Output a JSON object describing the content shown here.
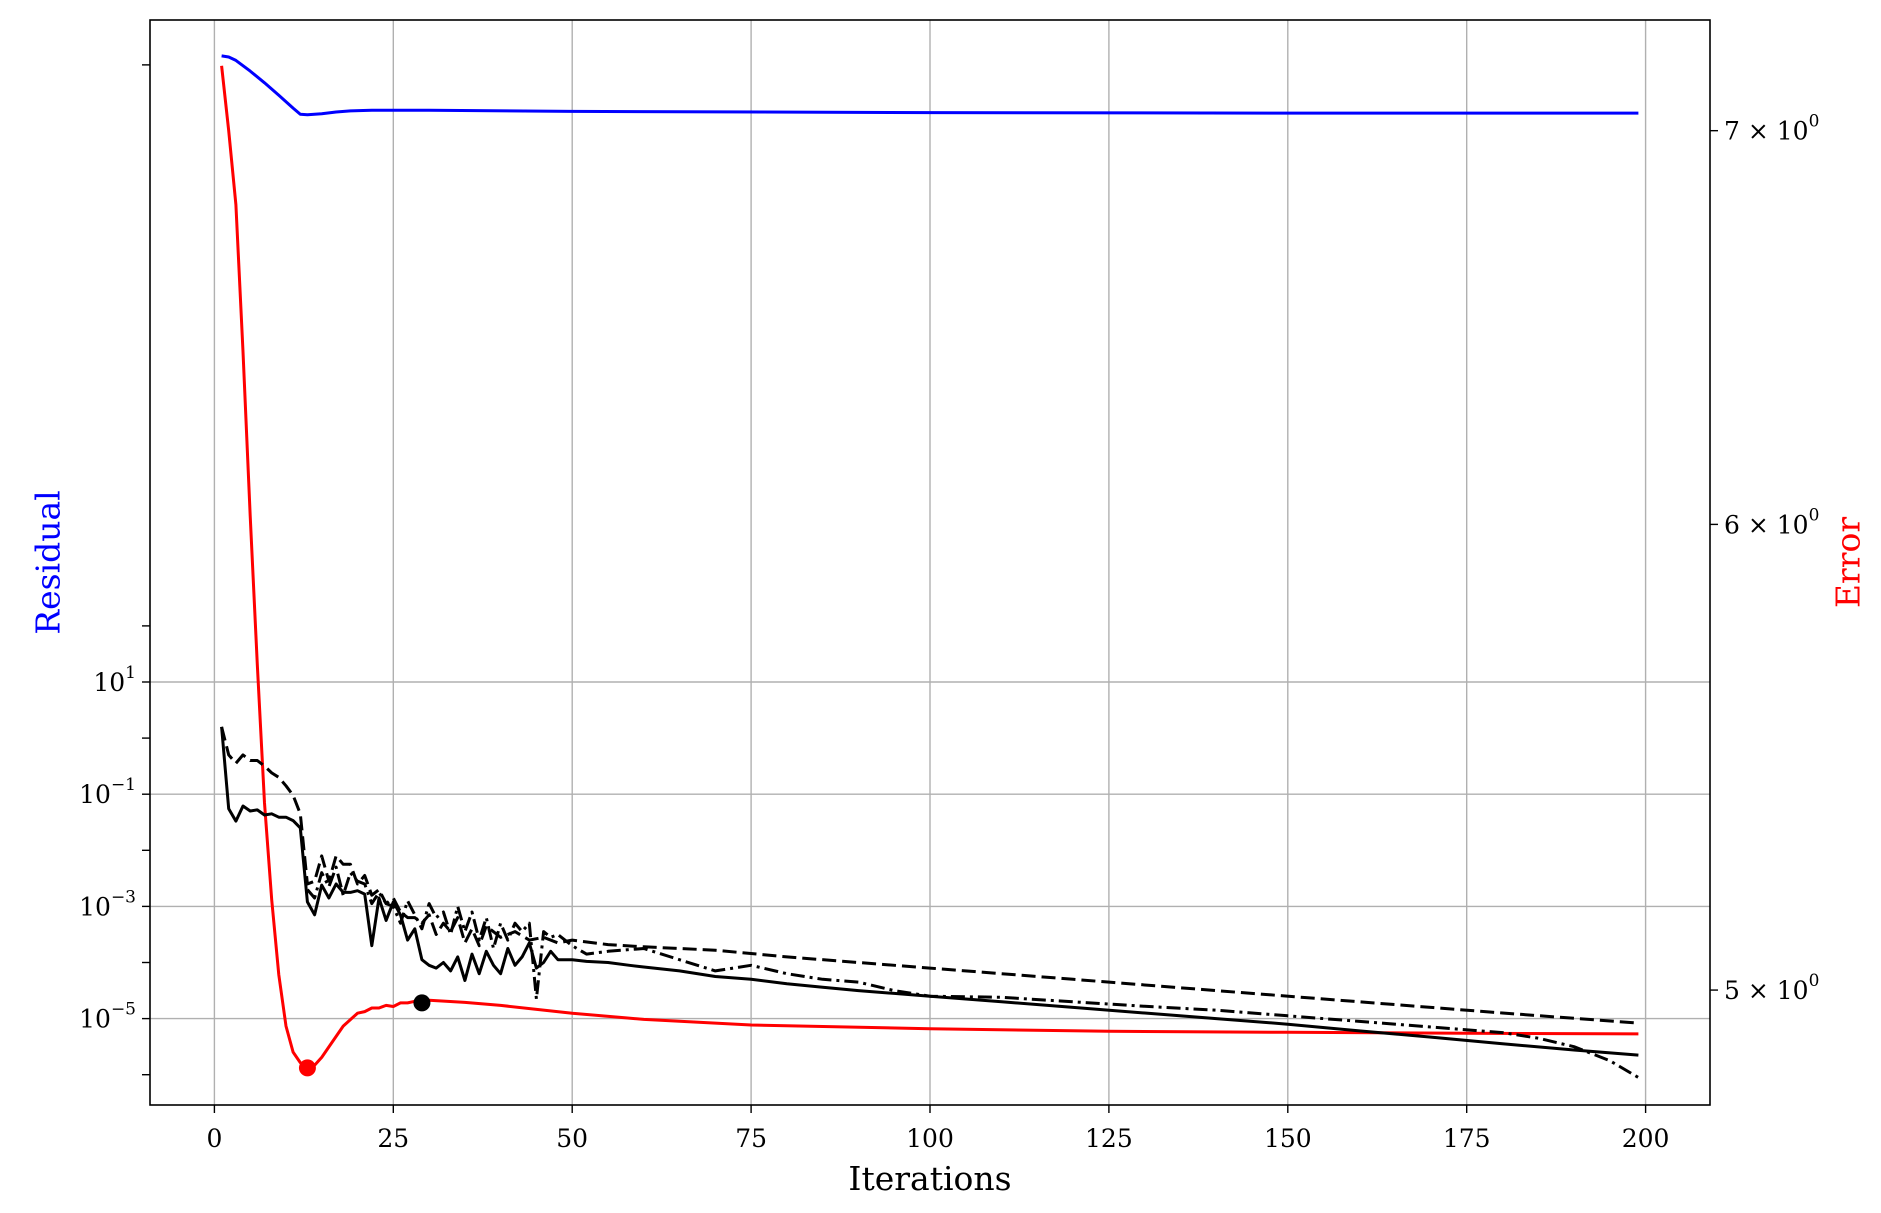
{
  "chart_data": {
    "type": "line",
    "xlabel": "Iterations",
    "ylabel_left": "Residual",
    "ylabel_right": "Error",
    "xlim": [
      -9,
      209
    ],
    "ylim_left_log10": [
      -6.54,
      12.8
    ],
    "ylim_right": [
      4.78,
      7.31
    ],
    "yscale_left": "log",
    "yscale_right": "log",
    "grid": true,
    "x_ticks": [
      {
        "value": 0,
        "label": "0"
      },
      {
        "value": 25,
        "label": "25"
      },
      {
        "value": 50,
        "label": "50"
      },
      {
        "value": 75,
        "label": "75"
      },
      {
        "value": 100,
        "label": "100"
      },
      {
        "value": 125,
        "label": "125"
      },
      {
        "value": 150,
        "label": "150"
      },
      {
        "value": 175,
        "label": "175"
      },
      {
        "value": 200,
        "label": "200"
      }
    ],
    "y_left_ticks": [
      {
        "exp": 1,
        "base": "10",
        "power": "1"
      },
      {
        "exp": -1,
        "base": "10",
        "power": "−1"
      },
      {
        "exp": -3,
        "base": "10",
        "power": "−3"
      },
      {
        "exp": -5,
        "base": "10",
        "power": "−5"
      }
    ],
    "y_right_ticks": [
      {
        "value": 7,
        "mantissa": "7 × 10",
        "power": "0"
      },
      {
        "value": 6,
        "mantissa": "6 × 10",
        "power": "0"
      },
      {
        "value": 5,
        "mantissa": "5 × 10",
        "power": "0"
      }
    ],
    "colors": {
      "residual": "#0000ff",
      "error": "#ff0000",
      "components": "#000000",
      "grid": "#b0b0b0"
    },
    "series": [
      {
        "axis": "left",
        "color": "#0000ff",
        "dash": "solid",
        "x": [
          1,
          2,
          3,
          5,
          7,
          9,
          11,
          12,
          13,
          15,
          17,
          19,
          22,
          30,
          50,
          100,
          150,
          199
        ],
        "log10_y": [
          12.16,
          12.14,
          12.08,
          11.89,
          11.68,
          11.46,
          11.23,
          11.12,
          11.11,
          11.13,
          11.16,
          11.18,
          11.19,
          11.19,
          11.17,
          11.15,
          11.14,
          11.14
        ]
      },
      {
        "axis": "right",
        "color": "#ff0000",
        "dash": "solid",
        "x": [
          1,
          2,
          3,
          4,
          5,
          6,
          7,
          8,
          9,
          10,
          11,
          12,
          13,
          14,
          15,
          16,
          18,
          20,
          21,
          22,
          23,
          24,
          25,
          26,
          27,
          28,
          29,
          30,
          35,
          40,
          50,
          60,
          75,
          100,
          125,
          150,
          175,
          199
        ],
        "y": [
          7.18,
          7.0,
          6.8,
          6.42,
          6.02,
          5.68,
          5.38,
          5.18,
          5.03,
          4.93,
          4.88,
          4.86,
          4.85,
          4.855,
          4.87,
          4.89,
          4.93,
          4.955,
          4.958,
          4.965,
          4.965,
          4.97,
          4.968,
          4.975,
          4.975,
          4.978,
          4.975,
          4.98,
          4.976,
          4.97,
          4.955,
          4.943,
          4.932,
          4.925,
          4.92,
          4.918,
          4.916,
          4.915
        ]
      },
      {
        "axis": "left",
        "color": "#000000",
        "dash": "solid",
        "x": [
          1,
          2,
          3,
          4,
          5,
          6,
          7,
          8,
          9,
          10,
          11,
          12,
          13,
          14,
          15,
          16,
          17,
          18,
          19,
          20,
          21,
          22,
          23,
          24,
          25,
          26,
          27,
          28,
          29,
          30,
          31,
          32,
          33,
          34,
          35,
          36,
          37,
          38,
          39,
          40,
          41,
          42,
          43,
          44,
          45,
          46,
          47,
          48,
          50,
          52,
          55,
          58,
          60,
          65,
          70,
          75,
          80,
          85,
          90,
          95,
          100,
          110,
          120,
          130,
          140,
          150,
          160,
          170,
          180,
          190,
          199
        ],
        "log10_y": [
          0.2,
          -1.26,
          -1.48,
          -1.21,
          -1.3,
          -1.28,
          -1.37,
          -1.35,
          -1.41,
          -1.41,
          -1.47,
          -1.6,
          -2.92,
          -3.15,
          -2.62,
          -2.85,
          -2.6,
          -2.75,
          -2.75,
          -2.72,
          -2.78,
          -3.7,
          -2.85,
          -3.25,
          -2.92,
          -3.15,
          -3.6,
          -3.4,
          -3.95,
          -4.05,
          -4.1,
          -4.0,
          -4.15,
          -3.9,
          -4.32,
          -3.85,
          -4.2,
          -3.8,
          -4.05,
          -4.2,
          -3.75,
          -4.05,
          -3.9,
          -3.65,
          -4.1,
          -4.0,
          -3.8,
          -3.95,
          -3.95,
          -3.98,
          -4.0,
          -4.05,
          -4.08,
          -4.15,
          -4.25,
          -4.3,
          -4.38,
          -4.44,
          -4.5,
          -4.55,
          -4.6,
          -4.7,
          -4.8,
          -4.9,
          -5.0,
          -5.1,
          -5.22,
          -5.33,
          -5.45,
          -5.56,
          -5.65
        ]
      },
      {
        "axis": "left",
        "color": "#000000",
        "dash": "dashed",
        "x": [
          1,
          2,
          3,
          4,
          5,
          6,
          7,
          8,
          9,
          10,
          11,
          12,
          13,
          14,
          15,
          16,
          17,
          18,
          19,
          20,
          21,
          22,
          23,
          24,
          25,
          26,
          27,
          28,
          29,
          30,
          31,
          32,
          33,
          34,
          35,
          36,
          37,
          38,
          40,
          42,
          44,
          46,
          48,
          50,
          55,
          60,
          70,
          80,
          90,
          100,
          120,
          140,
          160,
          180,
          199
        ],
        "log10_y": [
          0.2,
          -0.3,
          -0.45,
          -0.3,
          -0.4,
          -0.4,
          -0.5,
          -0.62,
          -0.7,
          -0.85,
          -1.02,
          -1.35,
          -2.6,
          -2.55,
          -2.1,
          -2.55,
          -2.1,
          -2.25,
          -2.25,
          -2.6,
          -2.45,
          -2.8,
          -2.7,
          -2.95,
          -2.85,
          -3.1,
          -3.2,
          -3.2,
          -3.3,
          -3.15,
          -3.5,
          -3.3,
          -3.45,
          -3.2,
          -3.65,
          -3.4,
          -3.7,
          -3.35,
          -3.55,
          -3.45,
          -3.6,
          -3.55,
          -3.65,
          -3.6,
          -3.68,
          -3.72,
          -3.78,
          -3.9,
          -4.0,
          -4.1,
          -4.3,
          -4.5,
          -4.7,
          -4.9,
          -5.08
        ]
      },
      {
        "axis": "left",
        "color": "#000000",
        "dash": "dashdot",
        "x": [
          13,
          14,
          15,
          16,
          17,
          18,
          19,
          20,
          21,
          22,
          23,
          24,
          25,
          26,
          27,
          28,
          29,
          30,
          31,
          32,
          33,
          34,
          35,
          36,
          37,
          38,
          39,
          40,
          41,
          42,
          43,
          44,
          45,
          46,
          47,
          48,
          50,
          52,
          55,
          60,
          65,
          70,
          75,
          80,
          85,
          90,
          95,
          100,
          110,
          120,
          130,
          140,
          150,
          160,
          170,
          180,
          185,
          190,
          195,
          199
        ],
        "log10_y": [
          -2.7,
          -2.85,
          -2.4,
          -2.65,
          -2.3,
          -2.8,
          -2.4,
          -2.55,
          -2.6,
          -2.95,
          -2.75,
          -2.95,
          -3.0,
          -3.3,
          -2.9,
          -3.15,
          -3.4,
          -2.95,
          -3.2,
          -3.1,
          -3.5,
          -3.0,
          -3.45,
          -3.1,
          -3.6,
          -3.2,
          -3.75,
          -3.3,
          -3.6,
          -3.3,
          -3.45,
          -3.3,
          -4.65,
          -3.45,
          -3.55,
          -3.5,
          -3.7,
          -3.85,
          -3.8,
          -3.75,
          -3.95,
          -4.15,
          -4.05,
          -4.2,
          -4.3,
          -4.35,
          -4.5,
          -4.6,
          -4.62,
          -4.7,
          -4.78,
          -4.85,
          -4.95,
          -5.05,
          -5.15,
          -5.25,
          -5.35,
          -5.5,
          -5.75,
          -6.05
        ]
      }
    ],
    "markers": [
      {
        "axis": "right",
        "x": 13,
        "y": 4.85,
        "color": "#ff0000"
      },
      {
        "axis": "right",
        "x": 29,
        "y": 4.975,
        "color": "#000000"
      }
    ]
  }
}
